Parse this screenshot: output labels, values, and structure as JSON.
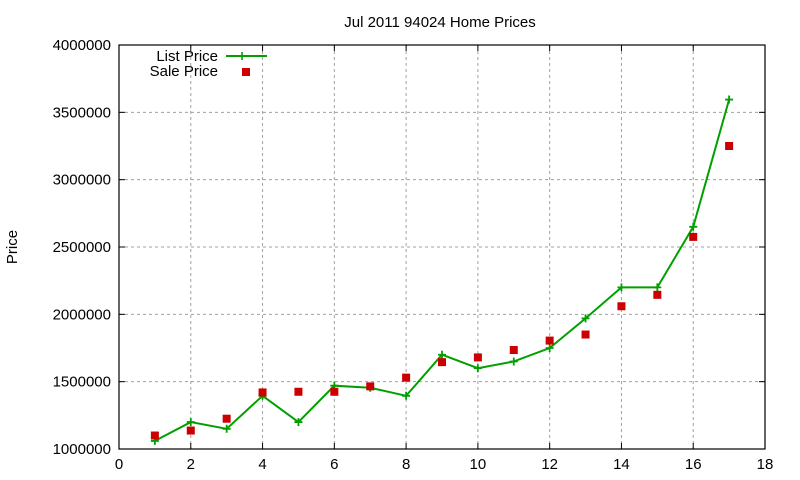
{
  "chart_data": {
    "type": "line",
    "title": "Jul 2011 94024 Home Prices",
    "xlabel": "",
    "ylabel": "Price",
    "xlim": [
      0,
      18
    ],
    "ylim": [
      1000000,
      4000000
    ],
    "x_ticks": [
      0,
      2,
      4,
      6,
      8,
      10,
      12,
      14,
      16,
      18
    ],
    "y_ticks": [
      1000000,
      1500000,
      2000000,
      2500000,
      3000000,
      3500000,
      4000000
    ],
    "grid": true,
    "legend_position": "top-left",
    "x": [
      1,
      2,
      3,
      4,
      5,
      6,
      7,
      8,
      9,
      10,
      11,
      12,
      13,
      14,
      15,
      16,
      17
    ],
    "series": [
      {
        "name": "List Price",
        "style": "linespoints",
        "marker": "plus",
        "color": "#00a000",
        "values": [
          1060000,
          1200000,
          1150000,
          1395000,
          1200000,
          1470000,
          1455000,
          1395000,
          1700000,
          1600000,
          1650000,
          1750000,
          1970000,
          2200000,
          2200000,
          2650000,
          3595000
        ]
      },
      {
        "name": "Sale Price",
        "style": "points",
        "marker": "filled-square",
        "color": "#cc0000",
        "values": [
          1100000,
          1137000,
          1225000,
          1420000,
          1425000,
          1425000,
          1465000,
          1530000,
          1645000,
          1680000,
          1735000,
          1805000,
          1850000,
          2060000,
          2145000,
          2575000,
          3250000
        ]
      }
    ]
  }
}
